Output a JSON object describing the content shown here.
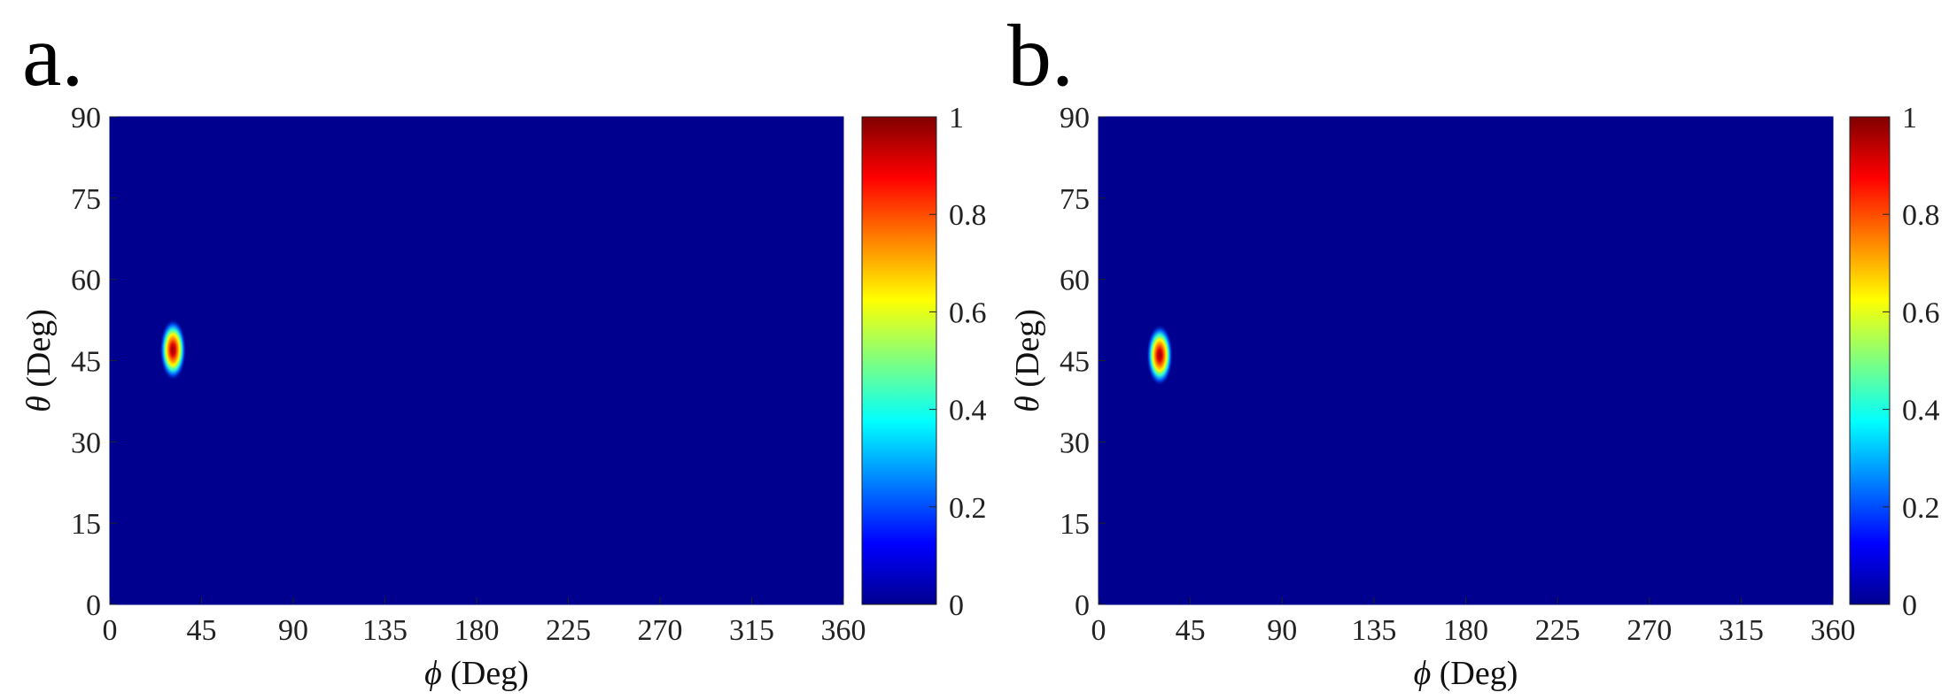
{
  "figure": {
    "panels": [
      {
        "label": "a."
      },
      {
        "label": "b."
      }
    ]
  },
  "chart_data": [
    {
      "type": "heatmap",
      "panel": "a.",
      "xlabel_symbol": "ϕ",
      "xlabel_unit": " (Deg)",
      "ylabel_symbol": "θ",
      "ylabel_unit": " (Deg)",
      "xlim": [
        0,
        360
      ],
      "ylim": [
        0,
        90
      ],
      "xticks": [
        "0",
        "45",
        "90",
        "135",
        "180",
        "225",
        "270",
        "315",
        "360"
      ],
      "yticks": [
        "0",
        "15",
        "30",
        "45",
        "60",
        "75",
        "90"
      ],
      "colorbar": {
        "range": [
          0,
          1
        ],
        "ticks": [
          "0",
          "0.2",
          "0.4",
          "0.6",
          "0.8",
          "1"
        ],
        "colormap": "jet"
      },
      "background_value": 0,
      "peak": {
        "phi": 31,
        "theta": 47,
        "value": 1
      }
    },
    {
      "type": "heatmap",
      "panel": "b.",
      "xlabel_symbol": "ϕ",
      "xlabel_unit": " (Deg)",
      "ylabel_symbol": "θ",
      "ylabel_unit": " (Deg)",
      "xlim": [
        0,
        360
      ],
      "ylim": [
        0,
        90
      ],
      "xticks": [
        "0",
        "45",
        "90",
        "135",
        "180",
        "225",
        "270",
        "315",
        "360"
      ],
      "yticks": [
        "0",
        "15",
        "30",
        "45",
        "60",
        "75",
        "90"
      ],
      "colorbar": {
        "range": [
          0,
          1
        ],
        "ticks": [
          "0",
          "0.2",
          "0.4",
          "0.6",
          "0.8",
          "1"
        ],
        "colormap": "jet"
      },
      "background_value": 0,
      "peak": {
        "phi": 30,
        "theta": 46,
        "value": 1
      }
    }
  ]
}
